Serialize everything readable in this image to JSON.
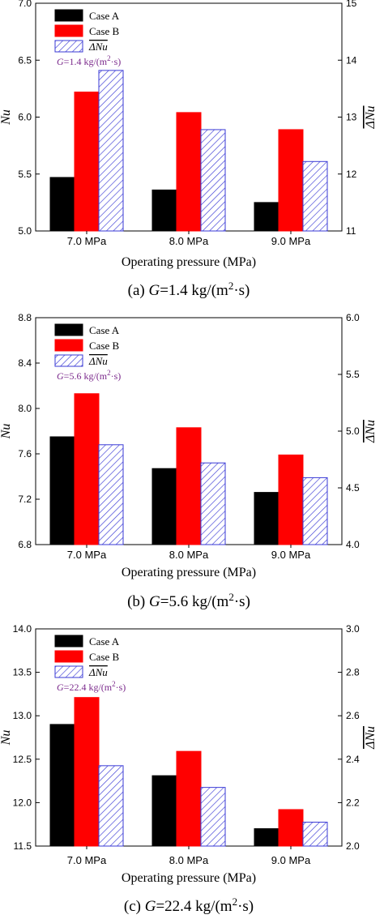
{
  "colors": {
    "case_a": "#000000",
    "case_b": "#ff0000",
    "delta": "#3a3ad6",
    "g_text": "#7b2a8c"
  },
  "chart_data": [
    {
      "type": "bar",
      "categories": [
        "7.0 MPa",
        "8.0 MPa",
        "9.0 MPa"
      ],
      "xlabel": "Operating pressure (MPa)",
      "ylabel": "Nu",
      "ylabel_overline": true,
      "y2label": "ΔNu",
      "ylim": [
        5.0,
        7.0
      ],
      "yticks": [
        5.0,
        5.5,
        6.0,
        6.5,
        7.0
      ],
      "yticks_labels": [
        "5.0",
        "5.5",
        "6.0",
        "6.5",
        "7.0"
      ],
      "y2lim": [
        11,
        15
      ],
      "y2ticks": [
        11,
        12,
        13,
        14,
        15
      ],
      "y2ticks_labels": [
        "11",
        "12",
        "13",
        "14",
        "15"
      ],
      "legend": {
        "placement": "top-left",
        "entries": [
          "Case A",
          "Case B",
          "ΔNu"
        ]
      },
      "annotation": {
        "G": "G",
        "rest": "=1.4 kg/(m",
        "sup": "2",
        "tail": "·s)"
      },
      "caption": {
        "prefix": "(a) ",
        "G": "G",
        "rest": "=1.4 kg/(m",
        "sup": "2",
        "tail": "·s)"
      },
      "series": [
        {
          "name": "Case A",
          "axis": "left",
          "values": [
            5.47,
            5.36,
            5.25
          ]
        },
        {
          "name": "Case B",
          "axis": "left",
          "values": [
            6.22,
            6.04,
            5.89
          ]
        },
        {
          "name": "ΔNu",
          "axis": "right",
          "hatched": true,
          "values": [
            13.82,
            12.78,
            12.22
          ]
        }
      ]
    },
    {
      "type": "bar",
      "categories": [
        "7.0 MPa",
        "8.0 MPa",
        "9.0 MPa"
      ],
      "xlabel": "Operating pressure (MPa)",
      "ylabel": "Nu",
      "ylabel_overline": true,
      "y2label": "ΔNu",
      "ylim": [
        6.8,
        8.8
      ],
      "yticks": [
        6.8,
        7.2,
        7.6,
        8.0,
        8.4,
        8.8
      ],
      "yticks_labels": [
        "6.8",
        "7.2",
        "7.6",
        "8.0",
        "8.4",
        "8.8"
      ],
      "y2lim": [
        4.0,
        6.0
      ],
      "y2ticks": [
        4.0,
        4.5,
        5.0,
        5.5,
        6.0
      ],
      "y2ticks_labels": [
        "4.0",
        "4.5",
        "5.0",
        "5.5",
        "6.0"
      ],
      "legend": {
        "placement": "top-left",
        "entries": [
          "Case A",
          "Case B",
          "ΔNu"
        ]
      },
      "annotation": {
        "G": "G",
        "rest": "=5.6 kg/(m",
        "sup": "2",
        "tail": "·s)"
      },
      "caption": {
        "prefix": "(b) ",
        "G": "G",
        "rest": "=5.6 kg/(m",
        "sup": "2",
        "tail": "·s)"
      },
      "series": [
        {
          "name": "Case A",
          "axis": "left",
          "values": [
            7.75,
            7.47,
            7.26
          ]
        },
        {
          "name": "Case B",
          "axis": "left",
          "values": [
            8.13,
            7.83,
            7.59
          ]
        },
        {
          "name": "ΔNu",
          "axis": "right",
          "hatched": true,
          "values": [
            4.88,
            4.72,
            4.59
          ]
        }
      ]
    },
    {
      "type": "bar",
      "categories": [
        "7.0 MPa",
        "8.0 MPa",
        "9.0 MPa"
      ],
      "xlabel": "Operating pressure (MPa)",
      "ylabel": "Nu",
      "ylabel_overline": true,
      "y2label": "ΔNu",
      "ylim": [
        11.5,
        14.0
      ],
      "yticks": [
        11.5,
        12.0,
        12.5,
        13.0,
        13.5,
        14.0
      ],
      "yticks_labels": [
        "11.5",
        "12.0",
        "12.5",
        "13.0",
        "13.5",
        "14.0"
      ],
      "y2lim": [
        2.0,
        3.0
      ],
      "y2ticks": [
        2.0,
        2.2,
        2.4,
        2.6,
        2.8,
        3.0
      ],
      "y2ticks_labels": [
        "2.0",
        "2.2",
        "2.4",
        "2.6",
        "2.8",
        "3.0"
      ],
      "legend": {
        "placement": "top-left",
        "entries": [
          "Case A",
          "Case B",
          "ΔNu"
        ]
      },
      "annotation": {
        "G": "G",
        "rest": "=22.4 kg/(m",
        "sup": "2",
        "tail": "·s)"
      },
      "caption": {
        "prefix": "(c) ",
        "G": "G",
        "rest": "=22.4 kg/(m",
        "sup": "2",
        "tail": "·s)"
      },
      "series": [
        {
          "name": "Case A",
          "axis": "left",
          "values": [
            12.9,
            12.31,
            11.7
          ]
        },
        {
          "name": "Case B",
          "axis": "left",
          "values": [
            13.21,
            12.59,
            11.92
          ]
        },
        {
          "name": "ΔNu",
          "axis": "right",
          "hatched": true,
          "values": [
            2.37,
            2.27,
            2.11
          ]
        }
      ]
    }
  ]
}
